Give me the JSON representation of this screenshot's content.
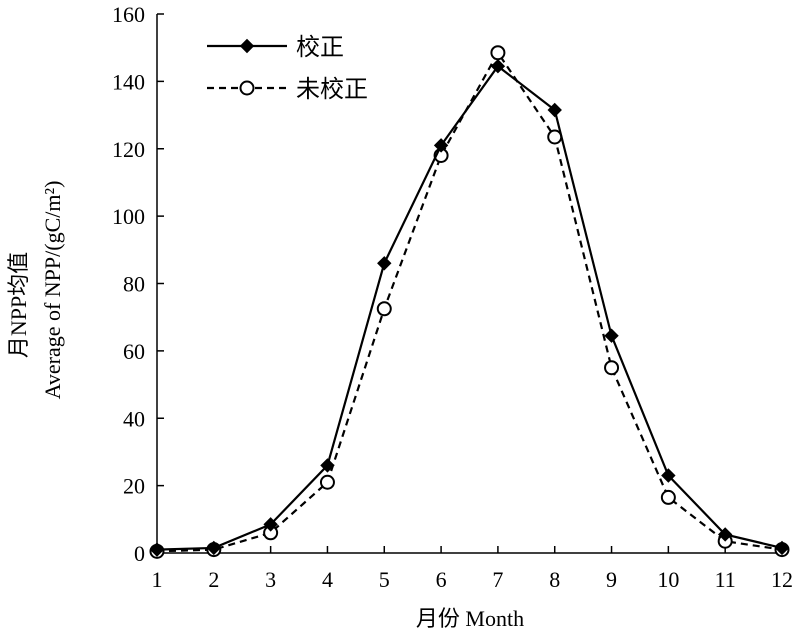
{
  "chart_data": {
    "type": "line",
    "xlabel": "月份 Month",
    "ylabel_line1": "月NPP均值",
    "ylabel_line2": "Average of NPP/(gC/m²)",
    "x": [
      1,
      2,
      3,
      4,
      5,
      6,
      7,
      8,
      9,
      10,
      11,
      12
    ],
    "xlim": [
      1,
      12
    ],
    "ylim": [
      0,
      160
    ],
    "y_ticks": [
      0,
      20,
      40,
      60,
      80,
      100,
      120,
      140,
      160
    ],
    "grid": false,
    "legend_position": "top-left",
    "series": [
      {
        "name": "校正",
        "marker": "filled-diamond",
        "line_style": "solid",
        "color": "#000000",
        "values": [
          1,
          1.5,
          8.5,
          26,
          86,
          121,
          144.5,
          131.5,
          64.5,
          23,
          5.5,
          1.5
        ]
      },
      {
        "name": "未校正",
        "marker": "open-circle",
        "line_style": "dashed",
        "color": "#000000",
        "values": [
          0.5,
          1,
          6,
          21,
          72.5,
          118,
          148.5,
          123.5,
          55,
          16.5,
          3.5,
          1
        ]
      }
    ]
  }
}
